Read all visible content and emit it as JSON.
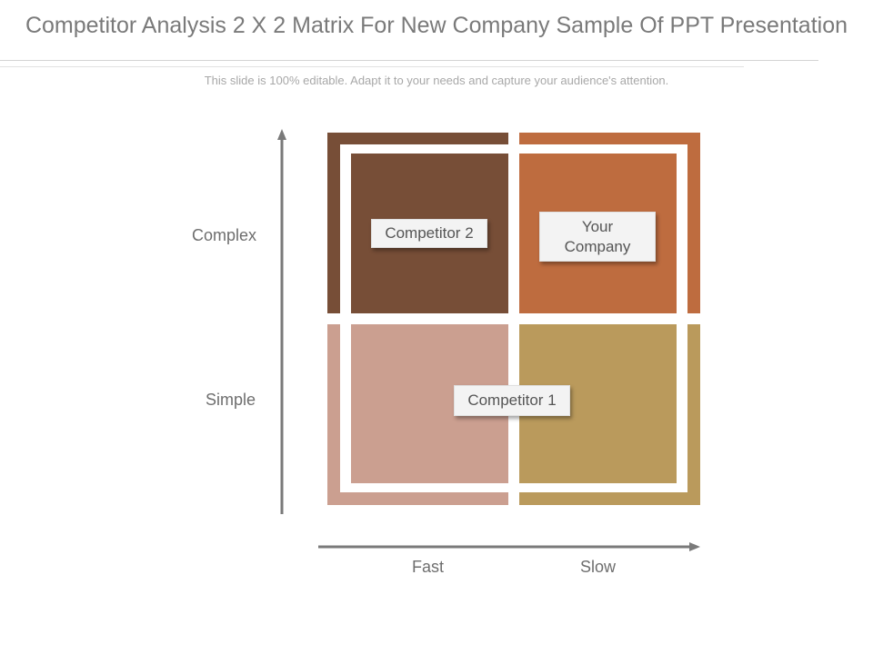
{
  "slide": {
    "title": "Competitor Analysis 2 X 2 Matrix For New Company Sample Of PPT Presentation",
    "subtitle": "This slide is 100% editable. Adapt it to your needs and capture your audience's attention."
  },
  "axes": {
    "y_high": "Complex",
    "y_low": "Simple",
    "x_left": "Fast",
    "x_right": "Slow"
  },
  "quadrants": {
    "top_left_color": "#774E37",
    "top_right_color": "#BE6C3F",
    "bottom_left_color": "#CB9F90",
    "bottom_right_color": "#BA9A5C"
  },
  "tags": {
    "competitor_2": "Competitor 2",
    "your_company_line1": "Your",
    "your_company_line2": "Company",
    "competitor_1": "Competitor 1"
  }
}
